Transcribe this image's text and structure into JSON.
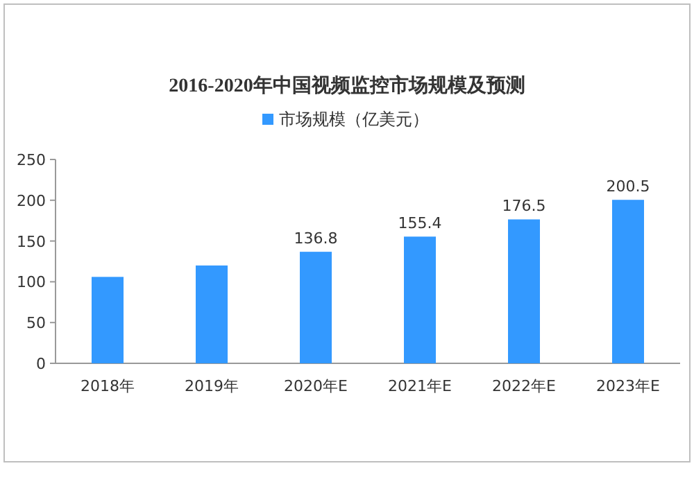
{
  "chart_data": {
    "type": "bar",
    "title": "2016-2020年中国视频监控市场规模及预测",
    "categories": [
      "2018年",
      "2019年",
      "2020年E",
      "2021年E",
      "2022年E",
      "2023年E"
    ],
    "series": [
      {
        "name": "市场规模（亿美元）",
        "color": "#3399ff",
        "values": [
          106,
          120,
          136.8,
          155.4,
          176.5,
          200.5
        ],
        "value_labels": [
          null,
          null,
          "136.8",
          "155.4",
          "176.5",
          "200.5"
        ]
      }
    ],
    "ylim": [
      0,
      250
    ],
    "yticks": [
      0,
      50,
      100,
      150,
      200,
      250
    ],
    "grid": false,
    "legend": "top"
  }
}
